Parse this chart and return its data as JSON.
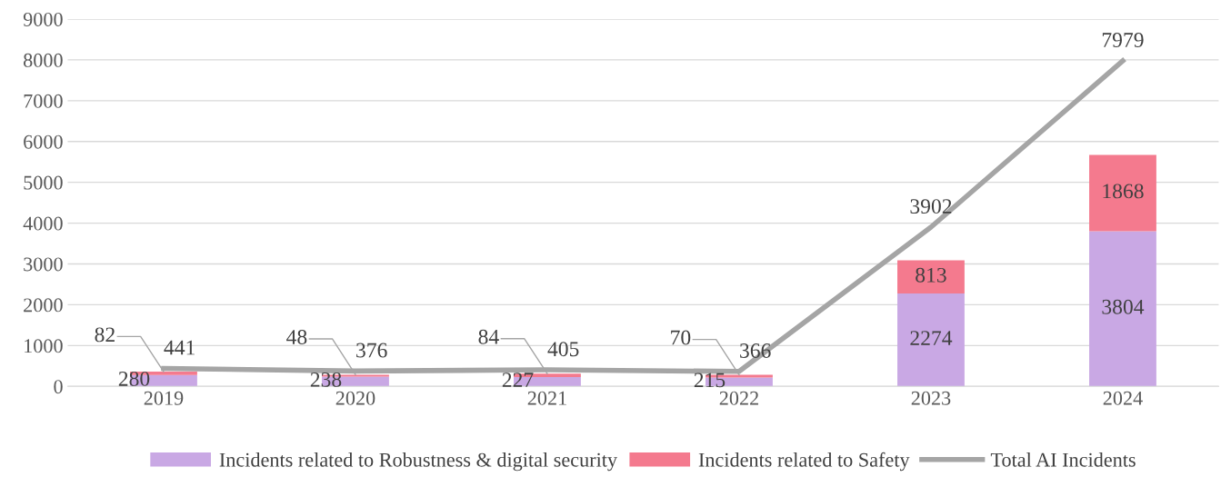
{
  "chart_data": {
    "type": "bar",
    "stacked": true,
    "categories": [
      "2019",
      "2020",
      "2021",
      "2022",
      "2023",
      "2024"
    ],
    "series": [
      {
        "name": "Incidents related to Robustness & digital security",
        "color": "#c9a8e4",
        "values": [
          280,
          238,
          227,
          215,
          2274,
          3804
        ]
      },
      {
        "name": "Incidents related to Safety",
        "color": "#f47a8e",
        "values": [
          82,
          48,
          84,
          70,
          813,
          1868
        ]
      },
      {
        "name": "Total AI Incidents",
        "type": "line",
        "color": "#a5a5a5",
        "values": [
          441,
          376,
          405,
          366,
          3902,
          7979
        ]
      }
    ],
    "ylim": [
      0,
      9000
    ],
    "yticks": [
      0,
      1000,
      2000,
      3000,
      4000,
      5000,
      6000,
      7000,
      8000,
      9000
    ],
    "grid": "y",
    "legend": "bottom",
    "data_labels": true,
    "marker": "none",
    "line_style": "solid"
  }
}
